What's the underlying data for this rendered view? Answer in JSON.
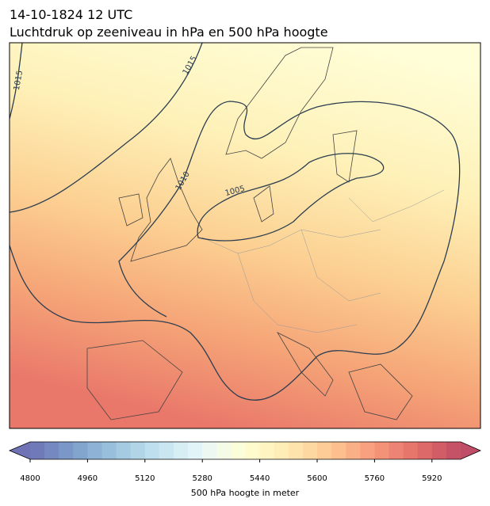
{
  "header": {
    "title_line1": "14-10-1824 12 UTC",
    "title_line2": "Luchtdruk op zeeniveau in hPa en 500 hPa hoogte"
  },
  "map": {
    "contour_labels": [
      "1015",
      "1015",
      "1010",
      "1005"
    ]
  },
  "colorbar": {
    "label": "500 hPa hoogte in meter",
    "range": [
      4800,
      6000
    ],
    "ticks": [
      4800,
      4960,
      5120,
      5280,
      5440,
      5600,
      5760,
      5920
    ]
  }
}
